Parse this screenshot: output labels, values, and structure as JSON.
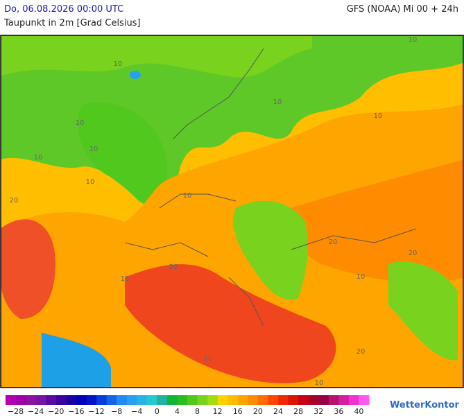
{
  "header": {
    "run_time": "Do, 06.08.2026 00:00 UTC",
    "model": "GFS (NOAA) Mi 00 + 24h",
    "parameter": "Taupunkt in 2m [Grad Celsius]"
  },
  "map": {
    "contour_labels": [
      "10",
      "10",
      "10",
      "10",
      "10",
      "10",
      "10",
      "10",
      "10",
      "10",
      "20",
      "20",
      "20",
      "20",
      "20",
      "20",
      "10",
      "10"
    ]
  },
  "legend": {
    "labels": [
      "−28",
      "−24",
      "−20",
      "−16",
      "−12",
      "−8",
      "−4",
      "0",
      "4",
      "8",
      "12",
      "16",
      "20",
      "24",
      "28",
      "32",
      "36",
      "40"
    ],
    "colors": [
      "#b400b4",
      "#a000aa",
      "#8c14a0",
      "#7814a0",
      "#5a0aa0",
      "#3c00a0",
      "#1e00a0",
      "#0000b4",
      "#0014c8",
      "#0a3cdc",
      "#1464e6",
      "#1e8cf0",
      "#28a0f0",
      "#2ab4e6",
      "#28c8d2",
      "#1eb4a0",
      "#14b43c",
      "#28be1e",
      "#50c81e",
      "#78d21e",
      "#a0dc14",
      "#ffd200",
      "#ffbe00",
      "#ffa500",
      "#ff8c00",
      "#ff6e00",
      "#ff4600",
      "#f02800",
      "#dc1400",
      "#c80014",
      "#aa0028",
      "#960046",
      "#b4146e",
      "#d21ea0",
      "#f032d2",
      "#ff5af0"
    ]
  },
  "brand": "WetterKontor"
}
